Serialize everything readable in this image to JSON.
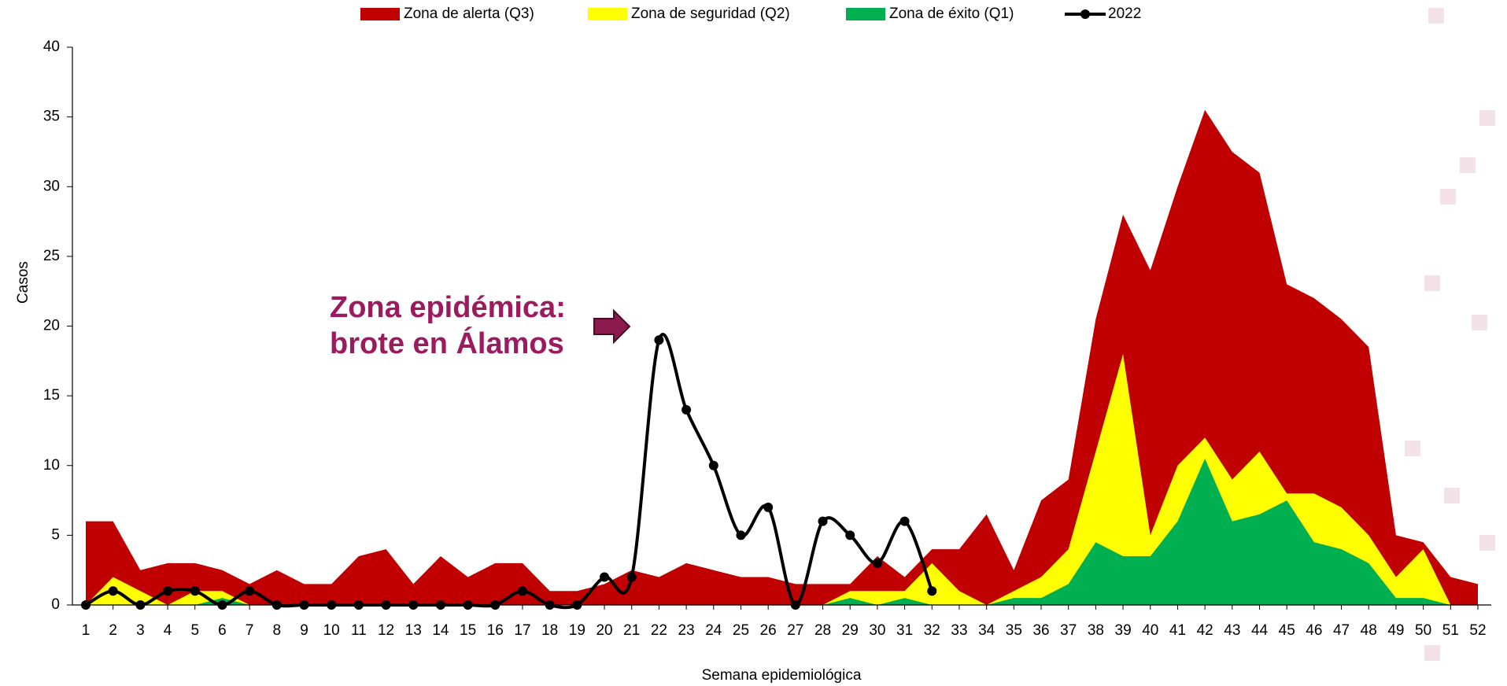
{
  "chart_data": {
    "type": "area",
    "xlabel": "Semana epidemiológica",
    "ylabel": "Casos",
    "annotation": [
      "Zona epidémica:",
      "brote en Álamos"
    ],
    "categories": [
      "1",
      "2",
      "3",
      "4",
      "5",
      "6",
      "7",
      "8",
      "9",
      "10",
      "11",
      "12",
      "13",
      "14",
      "15",
      "16",
      "17",
      "18",
      "19",
      "20",
      "21",
      "22",
      "23",
      "24",
      "25",
      "26",
      "27",
      "28",
      "29",
      "30",
      "31",
      "32",
      "33",
      "34",
      "35",
      "36",
      "37",
      "38",
      "39",
      "40",
      "41",
      "42",
      "43",
      "44",
      "45",
      "46",
      "47",
      "48",
      "49",
      "50",
      "51",
      "52"
    ],
    "series": [
      {
        "name": "Zona de alerta (Q3)",
        "color": "#c00000",
        "kind": "area",
        "values": [
          6,
          6,
          2.5,
          3,
          3,
          2.5,
          1.5,
          2.5,
          1.5,
          1.5,
          3.5,
          4,
          1.5,
          3.5,
          2,
          3,
          3,
          1,
          1,
          1.5,
          2.5,
          2,
          3,
          2.5,
          2,
          2,
          1.5,
          1.5,
          1.5,
          3.5,
          2,
          4,
          4,
          6.5,
          2.5,
          7.5,
          9,
          20.5,
          28,
          24,
          30,
          35.5,
          32.5,
          31,
          23,
          22,
          20.5,
          18.5,
          5,
          4.5,
          2,
          1.5
        ]
      },
      {
        "name": "Zona de seguridad (Q2)",
        "color": "#ffff00",
        "kind": "area",
        "values": [
          0,
          2,
          1,
          0,
          1,
          1,
          0,
          0,
          0,
          0,
          0,
          0,
          0,
          0,
          0,
          0,
          0,
          0,
          0,
          0,
          0,
          0,
          0,
          0,
          0,
          0,
          0,
          0,
          1,
          1,
          1,
          3,
          1,
          0,
          1,
          2,
          4,
          11,
          18,
          5,
          10,
          12,
          9,
          11,
          8,
          8,
          7,
          5,
          2,
          4,
          0,
          null
        ]
      },
      {
        "name": "Zona de éxito (Q1)",
        "color": "#00b050",
        "kind": "area",
        "values": [
          0,
          0,
          0,
          0,
          0,
          0.5,
          0,
          0,
          0,
          0,
          0,
          0,
          0,
          0,
          0,
          0,
          0,
          0,
          0,
          0,
          0,
          0,
          0,
          0,
          0,
          0,
          0,
          0,
          0.5,
          0,
          0.5,
          0,
          0,
          0,
          0.5,
          0.5,
          1.5,
          4.5,
          3.5,
          3.5,
          6,
          10.5,
          6,
          6.5,
          7.5,
          4.5,
          4,
          3,
          0.5,
          0.5,
          0,
          null
        ]
      },
      {
        "name": "2022",
        "color": "#000000",
        "kind": "line",
        "values": [
          0,
          1,
          0,
          1,
          1,
          0,
          1,
          0,
          0,
          0,
          0,
          0,
          0,
          0,
          0,
          0,
          1,
          0,
          0,
          2,
          2,
          19,
          14,
          10,
          5,
          7,
          0,
          6,
          5,
          3,
          6,
          1,
          null,
          null,
          null,
          null,
          null,
          null,
          null,
          null,
          null,
          null,
          null,
          null,
          null,
          null,
          null,
          null,
          null,
          null,
          null,
          null
        ]
      }
    ],
    "ylim": [
      0,
      40
    ],
    "yticks": [
      0,
      5,
      10,
      15,
      20,
      25,
      30,
      35,
      40
    ]
  }
}
